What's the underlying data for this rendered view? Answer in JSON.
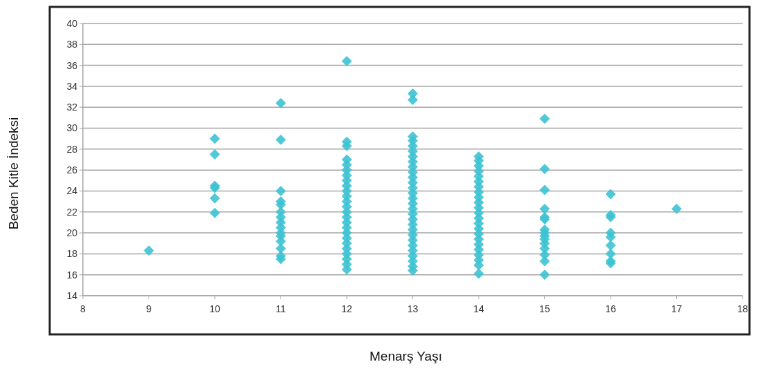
{
  "chart_data": {
    "type": "scatter",
    "xlabel": "Menarş Yaşı",
    "ylabel": "Beden Kitle İndeksi",
    "xlim": [
      8,
      18
    ],
    "xticks": [
      8,
      9,
      10,
      11,
      12,
      13,
      14,
      15,
      16,
      17,
      18
    ],
    "ylim": [
      14,
      40
    ],
    "yticks": [
      14,
      16,
      18,
      20,
      22,
      24,
      26,
      28,
      30,
      32,
      34,
      36,
      38,
      40
    ],
    "grid": "y",
    "marker": "diamond",
    "series": [
      {
        "color": "#3ec3d3",
        "x": [
          9,
          10,
          10,
          10,
          10,
          10,
          10,
          11,
          11,
          11,
          11,
          11,
          11,
          11,
          11,
          11,
          11,
          11,
          11,
          11,
          11,
          11,
          12,
          12,
          12,
          12,
          12,
          12,
          12,
          12,
          12,
          12,
          12,
          12,
          12,
          12,
          12,
          12,
          12,
          12,
          12,
          12,
          12,
          12,
          12,
          12,
          12,
          13,
          13,
          13,
          13,
          13,
          13,
          13,
          13,
          13,
          13,
          13,
          13,
          13,
          13,
          13,
          13,
          13,
          13,
          13,
          13,
          13,
          13,
          13,
          13,
          13,
          13,
          13,
          13,
          13,
          14,
          14,
          14,
          14,
          14,
          14,
          14,
          14,
          14,
          14,
          14,
          14,
          14,
          14,
          14,
          14,
          14,
          14,
          14,
          14,
          14,
          14,
          14,
          15,
          15,
          15,
          15,
          15,
          15,
          15,
          15,
          15,
          15,
          15,
          15,
          15,
          15,
          15,
          16,
          16,
          16,
          16,
          16,
          16,
          16,
          16,
          16,
          17
        ],
        "values": [
          18.3,
          29,
          27.5,
          24.5,
          24.3,
          23.3,
          21.9,
          32.4,
          28.9,
          24,
          23,
          22.7,
          22,
          21.5,
          21,
          20.5,
          20,
          19.7,
          19.2,
          18.5,
          17.8,
          17.5,
          36.4,
          28.7,
          28.3,
          27,
          26.5,
          26,
          25.5,
          25,
          24.5,
          24,
          23.5,
          23,
          22.5,
          22,
          21.5,
          21,
          20.5,
          20,
          19.5,
          19,
          18.5,
          18,
          17.5,
          17,
          16.5,
          33.3,
          32.7,
          29.2,
          28.8,
          28.3,
          27.8,
          27.3,
          26.8,
          26.3,
          25.8,
          25.3,
          24.8,
          24.3,
          23.8,
          23.3,
          22.8,
          22.3,
          21.8,
          21.3,
          20.8,
          20.3,
          19.8,
          19.3,
          18.8,
          18.3,
          17.8,
          17.3,
          16.8,
          16.4,
          27.3,
          26.9,
          26.4,
          25.9,
          25.4,
          24.9,
          24.4,
          23.9,
          23.4,
          22.9,
          22.4,
          21.9,
          21.4,
          20.9,
          20.4,
          19.9,
          19.4,
          18.9,
          18.4,
          17.9,
          17.4,
          16.9,
          16.1,
          30.9,
          26.1,
          24.1,
          22.3,
          21.5,
          21.3,
          20.3,
          20,
          19.7,
          19.4,
          19,
          18.5,
          17.9,
          17.3,
          16,
          23.7,
          21.7,
          21.5,
          20,
          19.6,
          18.8,
          18,
          17.3,
          17.1,
          22.3
        ]
      }
    ]
  }
}
